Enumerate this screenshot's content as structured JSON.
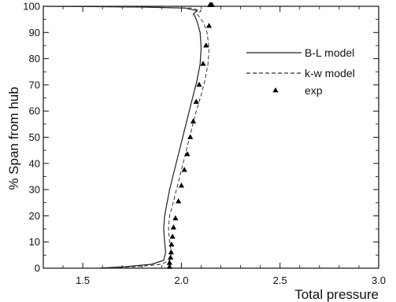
{
  "chart_data": {
    "type": "line",
    "title": "",
    "xlabel": "Total pressure",
    "ylabel": "% Span from hub",
    "xlim": [
      1.3,
      3.0
    ],
    "ylim": [
      0,
      100
    ],
    "xticks": [
      1.5,
      2.0,
      2.5,
      3.0
    ],
    "xtick_labels": [
      "1.5",
      "2.0",
      "2.5",
      "3.0"
    ],
    "yticks": [
      0,
      10,
      20,
      30,
      40,
      50,
      60,
      70,
      80,
      90,
      100
    ],
    "ytick_labels": [
      "0",
      "10",
      "20",
      "30",
      "40",
      "50",
      "60",
      "70",
      "80",
      "90",
      "100"
    ],
    "grid": false,
    "legend_position": "upper-right",
    "series": [
      {
        "name": "B-L model",
        "kind": "line",
        "style": "solid",
        "color": "#222222",
        "x": [
          1.58,
          1.72,
          1.85,
          1.91,
          1.92,
          1.915,
          1.91,
          1.915,
          1.925,
          1.94,
          1.96,
          1.98,
          2.0,
          2.02,
          2.04,
          2.06,
          2.08,
          2.095,
          2.1,
          2.095,
          2.08,
          2.07,
          2.06,
          2.08,
          2.02,
          1.8,
          1.3
        ],
        "y": [
          0,
          0.6,
          1.5,
          3,
          6,
          10,
          15,
          20,
          24,
          30,
          36,
          42,
          48,
          54,
          60,
          66,
          72,
          78,
          84,
          90,
          94,
          96,
          97,
          98.3,
          99.3,
          99.7,
          100
        ]
      },
      {
        "name": "k-w model",
        "kind": "line",
        "style": "dashed",
        "color": "#333333",
        "x": [
          1.62,
          1.78,
          1.9,
          1.94,
          1.95,
          1.94,
          1.935,
          1.94,
          1.955,
          1.975,
          1.995,
          2.015,
          2.035,
          2.055,
          2.075,
          2.1,
          2.12,
          2.135,
          2.14,
          2.13,
          2.11,
          2.09,
          2.08,
          2.1,
          2.05,
          1.85,
          1.3
        ],
        "y": [
          0,
          0.6,
          1.5,
          3,
          6,
          10,
          15,
          20,
          24,
          30,
          36,
          42,
          48,
          54,
          60,
          66,
          72,
          78,
          84,
          90,
          94,
          96,
          97,
          98.3,
          99.3,
          99.7,
          100
        ]
      },
      {
        "name": "exp",
        "kind": "markers",
        "marker": "triangle",
        "color": "#000000",
        "x": [
          1.94,
          1.94,
          1.945,
          1.948,
          1.95,
          1.955,
          1.96,
          1.97,
          1.985,
          2.0,
          2.015,
          2.03,
          2.045,
          2.06,
          2.075,
          2.09,
          2.11,
          2.125,
          2.14,
          2.145,
          2.15,
          2.155
        ],
        "y": [
          0.5,
          2,
          4,
          6,
          9,
          12,
          15.5,
          19,
          25.5,
          31.5,
          37.5,
          43.5,
          50,
          56,
          63.5,
          70,
          78,
          85,
          92.5,
          100.5,
          100.5,
          100.5
        ]
      }
    ]
  }
}
